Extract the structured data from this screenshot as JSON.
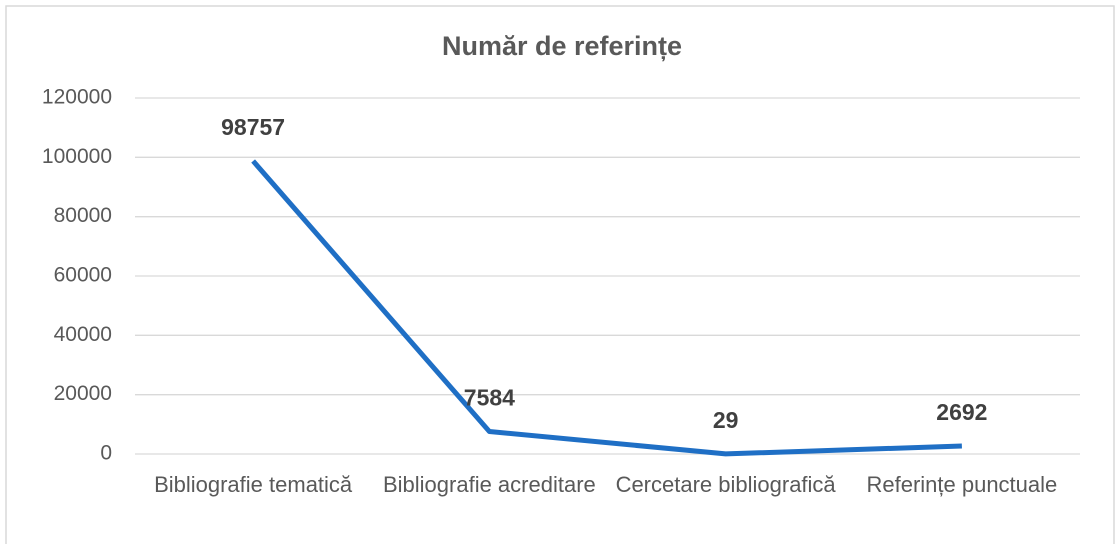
{
  "chart_data": {
    "type": "line",
    "title": "Număr de referințe",
    "categories": [
      "Bibliografie tematică",
      "Bibliografie acreditare",
      "Cercetare bibliografică",
      "Referințe punctuale"
    ],
    "values": [
      98757,
      7584,
      29,
      2692
    ],
    "color": "#1f6fc5",
    "ylim": [
      0,
      120000
    ],
    "yticks": [
      0,
      20000,
      40000,
      60000,
      80000,
      100000,
      120000
    ],
    "grid": true
  }
}
